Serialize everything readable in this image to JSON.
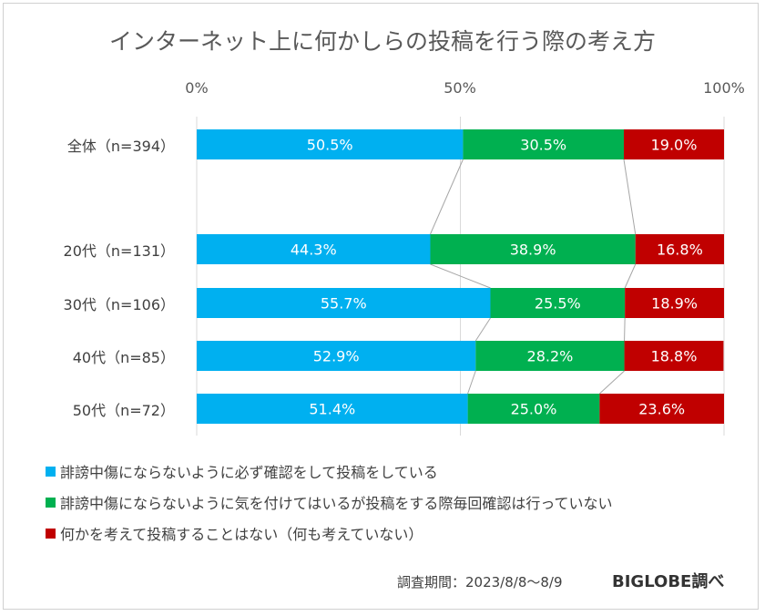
{
  "chart_data": {
    "type": "bar",
    "orientation": "horizontal",
    "stacked": true,
    "percent_stacked": true,
    "title": "インターネット上に何かしらの投稿を行う際の考え方",
    "xlabel": "",
    "ylabel": "",
    "xlim": [
      0,
      100
    ],
    "x_ticks": [
      "0%",
      "50%",
      "100%"
    ],
    "grid": true,
    "legend_position": "bottom-left",
    "series_lines": true,
    "categories": [
      "全体（n=394）",
      "20代（n=131）",
      "30代（n=106）",
      "40代（n=85）",
      "50代（n=72）"
    ],
    "series": [
      {
        "name": "誹謗中傷にならないように必ず確認をして投稿をしている",
        "color": "#00B0F0",
        "values": [
          50.5,
          44.3,
          55.7,
          52.9,
          51.4
        ],
        "labels": [
          "50.5%",
          "44.3%",
          "55.7%",
          "52.9%",
          "51.4%"
        ]
      },
      {
        "name": "誹謗中傷にならないように気を付けてはいるが投稿をする際毎回確認は行っていない",
        "color": "#00B050",
        "values": [
          30.5,
          38.9,
          25.5,
          28.2,
          25.0
        ],
        "labels": [
          "30.5%",
          "38.9%",
          "25.5%",
          "28.2%",
          "25.0%"
        ]
      },
      {
        "name": "何かを考えて投稿することはない（何も考えていない）",
        "color": "#C00000",
        "values": [
          19.0,
          16.8,
          18.9,
          18.8,
          23.6
        ],
        "labels": [
          "19.0%",
          "16.8%",
          "18.9%",
          "18.8%",
          "23.6%"
        ]
      }
    ]
  },
  "footer": {
    "period": "調査期間：2023/8/8～8/9",
    "source": "BIGLOBE調べ"
  }
}
